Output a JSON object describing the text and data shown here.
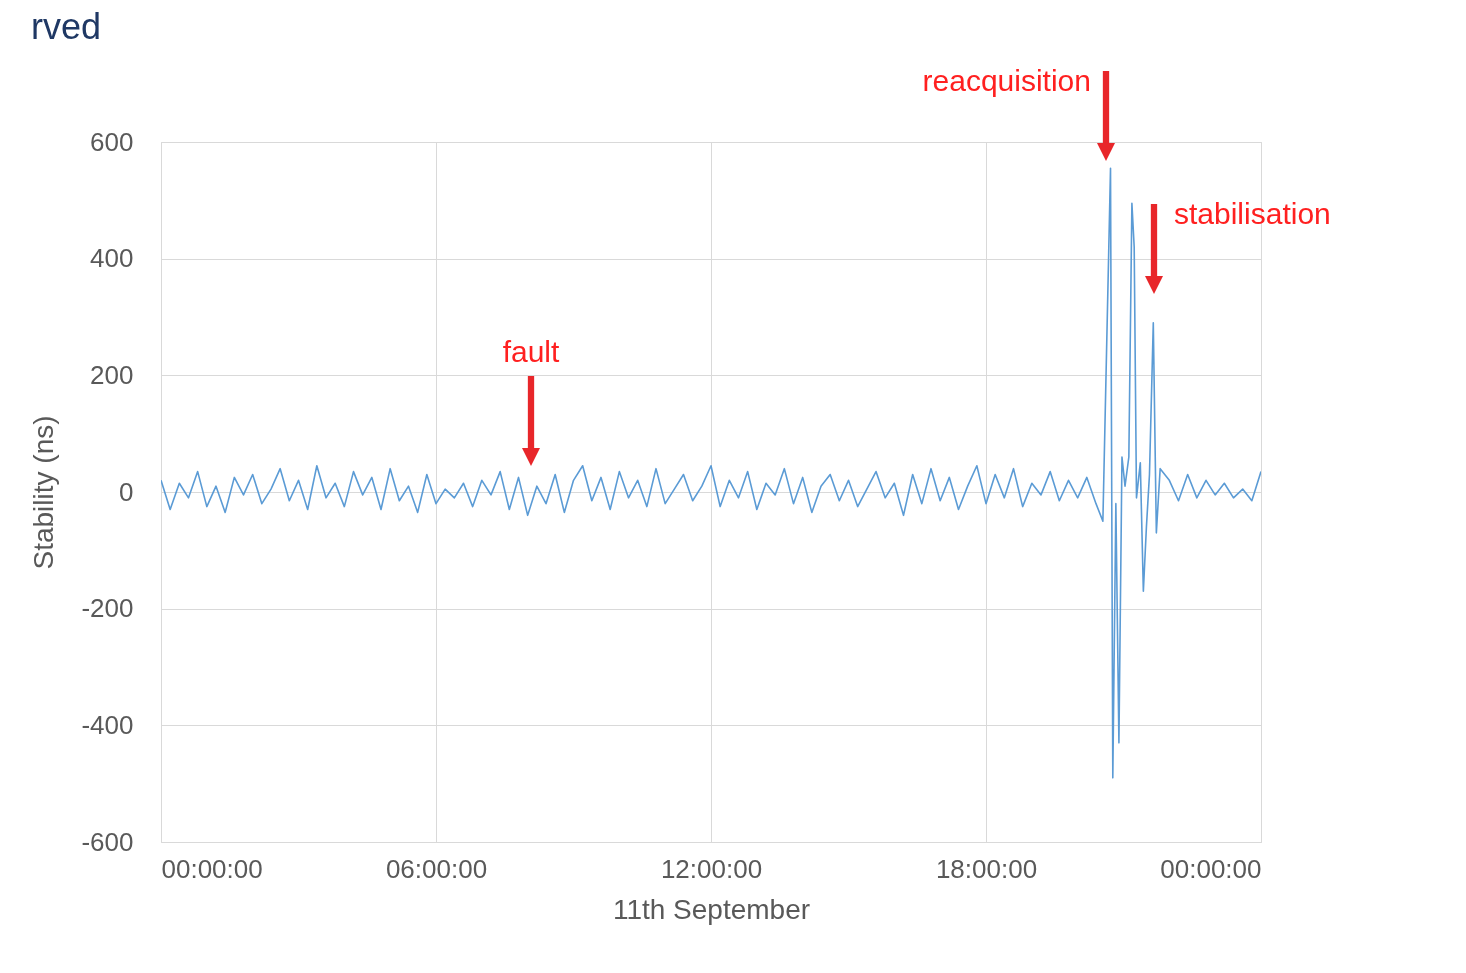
{
  "chart_data": {
    "type": "line",
    "title": "rved",
    "xlabel": "11th September",
    "ylabel": "Stability (ns)",
    "x": [
      "--09-11T00:00",
      "--09-11T00:12",
      "--09-11T00:24",
      "--09-11T00:36",
      "--09-11T00:48",
      "--09-11T01:00",
      "--09-11T01:12",
      "--09-11T01:24",
      "--09-11T01:36",
      "--09-11T01:48",
      "--09-11T02:00",
      "--09-11T02:12",
      "--09-11T02:24",
      "--09-11T02:36",
      "--09-11T02:48",
      "--09-11T03:00",
      "--09-11T03:12",
      "--09-11T03:24",
      "--09-11T03:36",
      "--09-11T03:48",
      "--09-11T04:00",
      "--09-11T04:12",
      "--09-11T04:24",
      "--09-11T04:36",
      "--09-11T04:48",
      "--09-11T05:00",
      "--09-11T05:12",
      "--09-11T05:24",
      "--09-11T05:36",
      "--09-11T05:48",
      "--09-11T06:00",
      "--09-11T06:12",
      "--09-11T06:24",
      "--09-11T06:36",
      "--09-11T06:48",
      "--09-11T07:00",
      "--09-11T07:12",
      "--09-11T07:24",
      "--09-11T07:36",
      "--09-11T07:48",
      "--09-11T08:00",
      "--09-11T08:12",
      "--09-11T08:24",
      "--09-11T08:36",
      "--09-11T08:48",
      "--09-11T09:00",
      "--09-11T09:12",
      "--09-11T09:24",
      "--09-11T09:36",
      "--09-11T09:48",
      "--09-11T10:00",
      "--09-11T10:12",
      "--09-11T10:24",
      "--09-11T10:36",
      "--09-11T10:48",
      "--09-11T11:00",
      "--09-11T11:12",
      "--09-11T11:24",
      "--09-11T11:36",
      "--09-11T11:48",
      "--09-11T12:00",
      "--09-11T12:12",
      "--09-11T12:24",
      "--09-11T12:36",
      "--09-11T12:48",
      "--09-11T13:00",
      "--09-11T13:12",
      "--09-11T13:24",
      "--09-11T13:36",
      "--09-11T13:48",
      "--09-11T14:00",
      "--09-11T14:12",
      "--09-11T14:24",
      "--09-11T14:36",
      "--09-11T14:48",
      "--09-11T15:00",
      "--09-11T15:12",
      "--09-11T15:24",
      "--09-11T15:36",
      "--09-11T15:48",
      "--09-11T16:00",
      "--09-11T16:12",
      "--09-11T16:24",
      "--09-11T16:36",
      "--09-11T16:48",
      "--09-11T17:00",
      "--09-11T17:12",
      "--09-11T17:24",
      "--09-11T17:36",
      "--09-11T17:48",
      "--09-11T18:00",
      "--09-11T18:12",
      "--09-11T18:24",
      "--09-11T18:36",
      "--09-11T18:48",
      "--09-11T19:00",
      "--09-11T19:12",
      "--09-11T19:24",
      "--09-11T19:36",
      "--09-11T19:48",
      "--09-11T20:00",
      "--09-11T20:12",
      "--09-11T20:24",
      "--09-11T20:33",
      "--09-11T20:43",
      "--09-11T20:46",
      "--09-11T20:50",
      "--09-11T20:54",
      "--09-11T20:58",
      "--09-11T21:02",
      "--09-11T21:07",
      "--09-11T21:11",
      "--09-11T21:14",
      "--09-11T21:17",
      "--09-11T21:22",
      "--09-11T21:26",
      "--09-11T21:30",
      "--09-11T21:34",
      "--09-11T21:39",
      "--09-11T21:43",
      "--09-11T21:48",
      "--09-11T22:00",
      "--09-11T22:12",
      "--09-11T22:24",
      "--09-11T22:36",
      "--09-11T22:48",
      "--09-11T23:00",
      "--09-11T23:12",
      "--09-11T23:24",
      "--09-11T23:36",
      "--09-11T23:48",
      "--09-12T00:00"
    ],
    "series": [
      {
        "color": "#5b9bd5",
        "values": [
          20,
          -30,
          15,
          -10,
          35,
          -25,
          10,
          -35,
          25,
          -5,
          30,
          -20,
          5,
          40,
          -15,
          20,
          -30,
          45,
          -10,
          15,
          -25,
          35,
          -5,
          25,
          -30,
          40,
          -15,
          10,
          -35,
          30,
          -20,
          5,
          -10,
          15,
          -25,
          20,
          -5,
          35,
          -30,
          25,
          -40,
          10,
          -20,
          30,
          -35,
          20,
          45,
          -15,
          25,
          -30,
          35,
          -10,
          20,
          -25,
          40,
          -20,
          5,
          30,
          -15,
          10,
          45,
          -25,
          20,
          -10,
          35,
          -30,
          15,
          -5,
          40,
          -20,
          25,
          -35,
          10,
          30,
          -15,
          20,
          -25,
          5,
          35,
          -10,
          15,
          -40,
          30,
          -20,
          40,
          -15,
          25,
          -30,
          10,
          45,
          -20,
          30,
          -10,
          40,
          -25,
          15,
          -5,
          35,
          -15,
          20,
          -10,
          25,
          -20,
          -50,
          555,
          -490,
          -20,
          -430,
          60,
          10,
          60,
          495,
          420,
          -10,
          50,
          -170,
          -60,
          30,
          290,
          -70,
          40,
          20,
          -15,
          30,
          -10,
          20,
          -5,
          15,
          -10,
          5,
          -15,
          35
        ]
      }
    ],
    "xlim": [
      "--09-11T00:00",
      "--09-12T00:00"
    ],
    "xticks": [
      {
        "value": "--09-11T00:00",
        "label": "00:00:00"
      },
      {
        "value": "--09-11T06:00",
        "label": "06:00:00"
      },
      {
        "value": "--09-11T12:00",
        "label": "12:00:00"
      },
      {
        "value": "--09-11T18:00",
        "label": "18:00:00"
      },
      {
        "value": "--09-12T00:00",
        "label": "00:00:00"
      }
    ],
    "ylim": [
      -600,
      600
    ],
    "yticks": [
      -600,
      -400,
      -200,
      0,
      200,
      400,
      600
    ],
    "grid": true,
    "annotations": [
      "fault",
      "reacquisition",
      "stabilisation"
    ]
  }
}
